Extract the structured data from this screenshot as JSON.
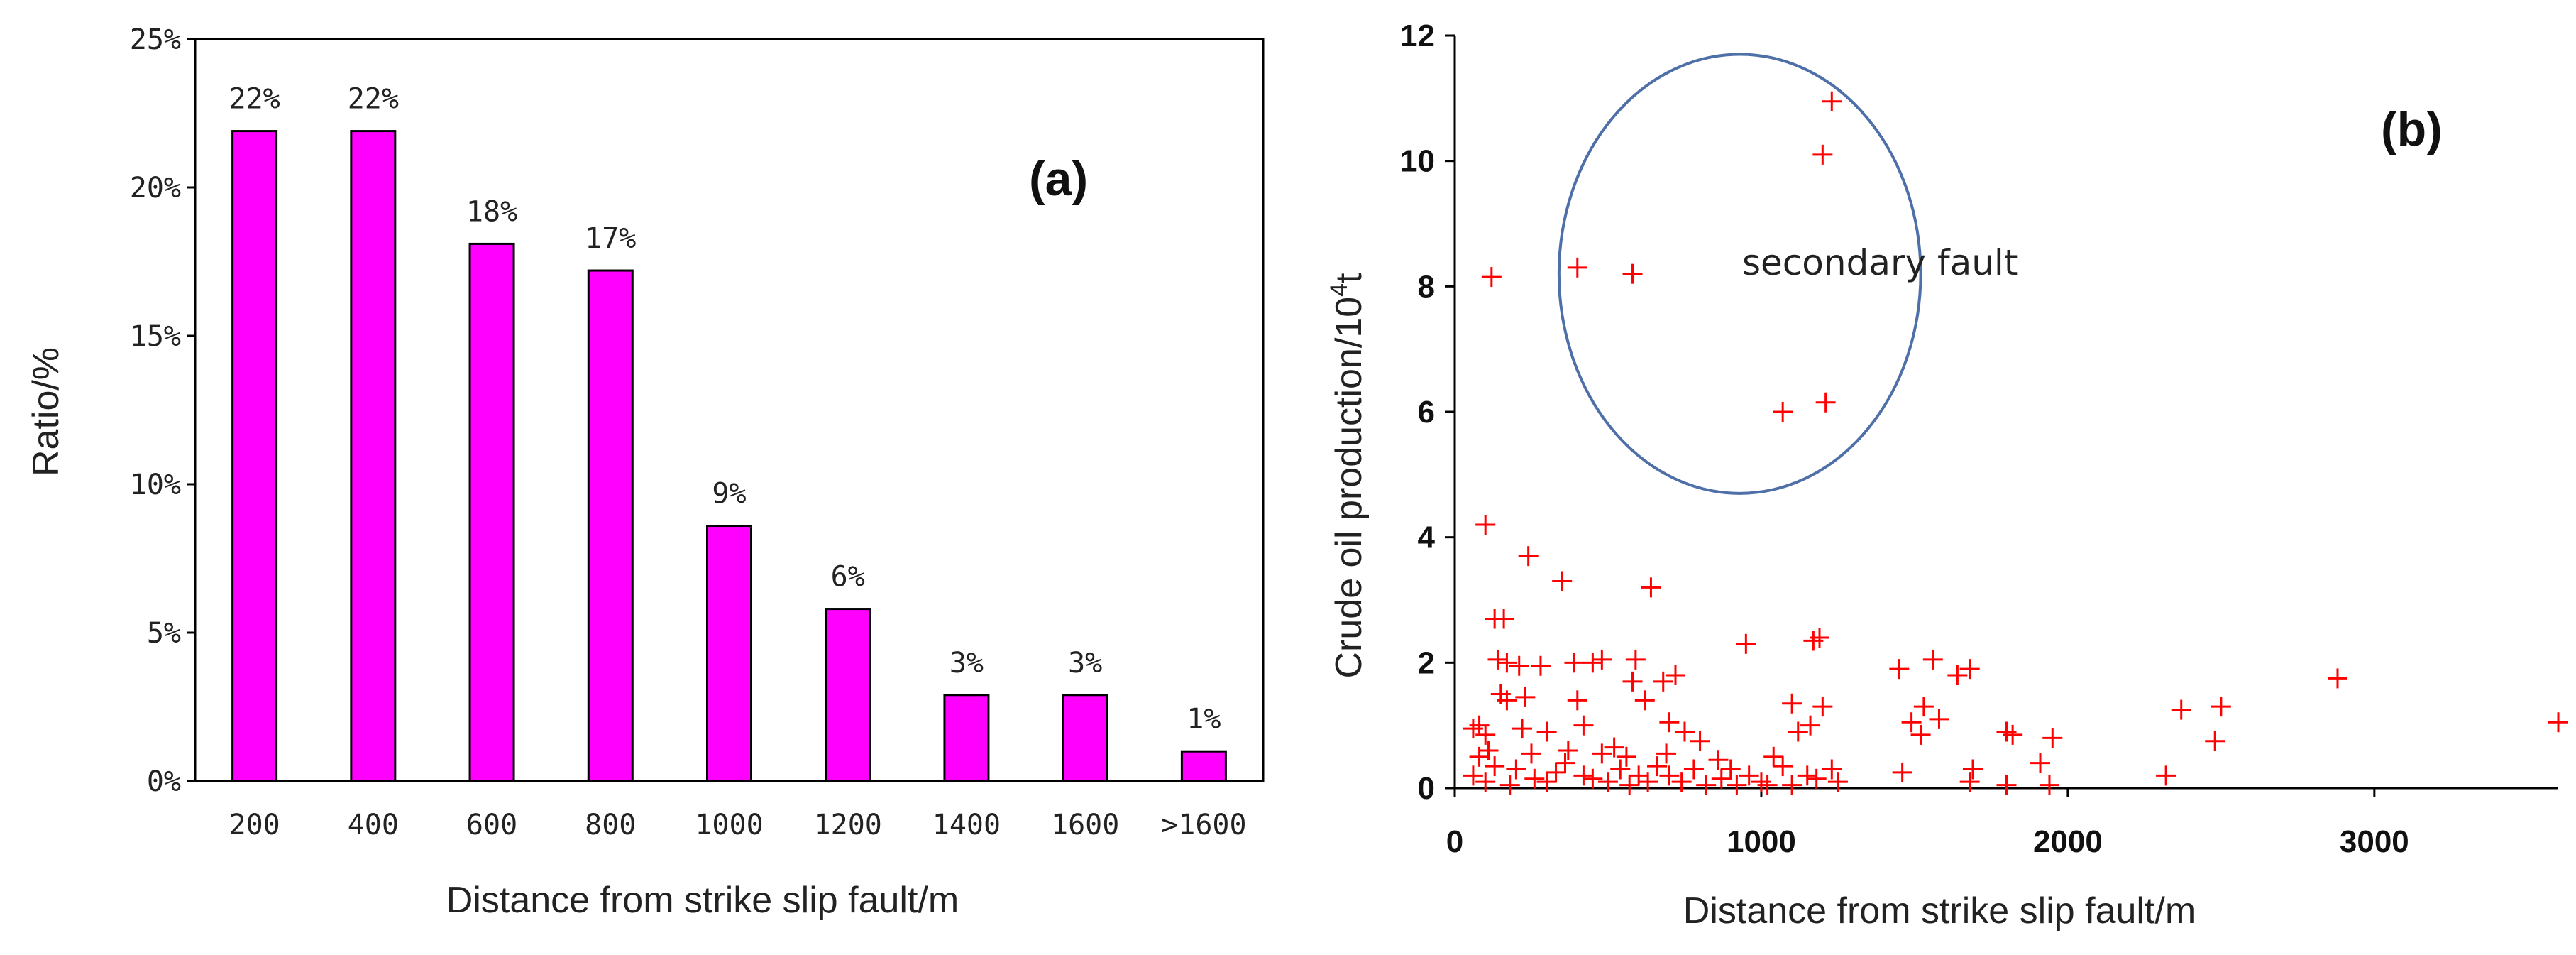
{
  "chart_data": [
    {
      "type": "bar",
      "panel_label": "(a)",
      "categories": [
        "200",
        "400",
        "600",
        "800",
        "1000",
        "1200",
        "1400",
        "1600",
        ">1600"
      ],
      "values": [
        22,
        22,
        18,
        17,
        9,
        6,
        3,
        3,
        1
      ],
      "value_labels": [
        "22%",
        "22%",
        "18%",
        "17%",
        "9%",
        "6%",
        "3%",
        "3%",
        "1%"
      ],
      "plotted_values": [
        21.9,
        21.9,
        18.1,
        17.2,
        8.6,
        5.8,
        2.9,
        2.9,
        1.0
      ],
      "ylim": [
        0,
        25
      ],
      "yticks": [
        0,
        5,
        10,
        15,
        20,
        25
      ],
      "ytick_labels": [
        "0%",
        "5%",
        "10%",
        "15%",
        "20%",
        "25%"
      ],
      "xlabel": "Distance from strike slip fault/m",
      "ylabel": "Ratio/%",
      "bar_color": "#ff00ff"
    },
    {
      "type": "scatter",
      "panel_label": "(b)",
      "xlim": [
        0,
        3600
      ],
      "ylim": [
        0,
        12
      ],
      "xticks": [
        0,
        1000,
        2000,
        3000
      ],
      "yticks": [
        0,
        2,
        4,
        6,
        8,
        10,
        12
      ],
      "xlabel": "Distance from strike slip fault/m",
      "ylabel_main": "Crude oil production/10",
      "ylabel_sup": "4",
      "ylabel_tail": "t",
      "annotation": "secondary fault",
      "marker_color": "#ff0000",
      "ellipse_color": "#4f6fa8",
      "ellipse_center": [
        930,
        8.2
      ],
      "ellipse_radii": [
        590,
        3.5
      ],
      "points": [
        [
          120,
          8.15
        ],
        [
          400,
          8.3
        ],
        [
          580,
          8.2
        ],
        [
          1230,
          10.95
        ],
        [
          1200,
          10.1
        ],
        [
          1070,
          6.0
        ],
        [
          1210,
          6.15
        ],
        [
          100,
          4.2
        ],
        [
          240,
          3.7
        ],
        [
          350,
          3.3
        ],
        [
          640,
          3.2
        ],
        [
          130,
          2.7
        ],
        [
          160,
          2.7
        ],
        [
          140,
          2.05
        ],
        [
          170,
          2.0
        ],
        [
          210,
          1.95
        ],
        [
          280,
          1.95
        ],
        [
          390,
          2.0
        ],
        [
          450,
          2.0
        ],
        [
          480,
          2.05
        ],
        [
          590,
          2.05
        ],
        [
          720,
          1.8
        ],
        [
          680,
          1.7
        ],
        [
          580,
          1.7
        ],
        [
          950,
          2.3
        ],
        [
          1170,
          2.35
        ],
        [
          1190,
          2.4
        ],
        [
          1100,
          1.35
        ],
        [
          1200,
          1.3
        ],
        [
          1450,
          1.9
        ],
        [
          1560,
          2.05
        ],
        [
          1640,
          1.8
        ],
        [
          1680,
          1.9
        ],
        [
          1530,
          1.3
        ],
        [
          1580,
          1.1
        ],
        [
          1490,
          1.05
        ],
        [
          1520,
          0.85
        ],
        [
          2880,
          1.75
        ],
        [
          3600,
          1.05
        ],
        [
          2370,
          1.25
        ],
        [
          2500,
          1.3
        ],
        [
          2480,
          0.75
        ],
        [
          1800,
          0.9
        ],
        [
          1820,
          0.85
        ],
        [
          1910,
          0.4
        ],
        [
          1950,
          0.8
        ],
        [
          2320,
          0.2
        ],
        [
          80,
          1.0
        ],
        [
          60,
          0.95
        ],
        [
          100,
          0.85
        ],
        [
          150,
          1.5
        ],
        [
          170,
          1.4
        ],
        [
          230,
          1.45
        ],
        [
          300,
          0.9
        ],
        [
          220,
          0.95
        ],
        [
          370,
          0.6
        ],
        [
          400,
          1.4
        ],
        [
          420,
          1.0
        ],
        [
          480,
          0.55
        ],
        [
          520,
          0.65
        ],
        [
          560,
          0.5
        ],
        [
          620,
          1.4
        ],
        [
          700,
          1.05
        ],
        [
          750,
          0.9
        ],
        [
          800,
          0.75
        ],
        [
          860,
          0.45
        ],
        [
          900,
          0.3
        ],
        [
          960,
          0.2
        ],
        [
          1000,
          0.1
        ],
        [
          1040,
          0.5
        ],
        [
          1070,
          0.35
        ],
        [
          1120,
          0.9
        ],
        [
          1160,
          1.0
        ],
        [
          1230,
          0.3
        ],
        [
          1180,
          0.15
        ],
        [
          1250,
          0.1
        ],
        [
          60,
          0.2
        ],
        [
          100,
          0.1
        ],
        [
          130,
          0.35
        ],
        [
          180,
          0.05
        ],
        [
          200,
          0.3
        ],
        [
          260,
          0.15
        ],
        [
          300,
          0.1
        ],
        [
          330,
          0.25
        ],
        [
          360,
          0.4
        ],
        [
          420,
          0.2
        ],
        [
          450,
          0.15
        ],
        [
          500,
          0.1
        ],
        [
          540,
          0.3
        ],
        [
          570,
          0.05
        ],
        [
          600,
          0.2
        ],
        [
          630,
          0.1
        ],
        [
          660,
          0.35
        ],
        [
          700,
          0.2
        ],
        [
          740,
          0.1
        ],
        [
          780,
          0.3
        ],
        [
          820,
          0.05
        ],
        [
          870,
          0.15
        ],
        [
          920,
          0.05
        ],
        [
          1020,
          0.05
        ],
        [
          1100,
          0.05
        ],
        [
          1150,
          0.2
        ],
        [
          1460,
          0.25
        ],
        [
          1680,
          0.1
        ],
        [
          1690,
          0.3
        ],
        [
          1800,
          0.05
        ],
        [
          1940,
          0.05
        ],
        [
          80,
          0.5
        ],
        [
          110,
          0.6
        ],
        [
          250,
          0.55
        ],
        [
          690,
          0.55
        ]
      ]
    }
  ]
}
